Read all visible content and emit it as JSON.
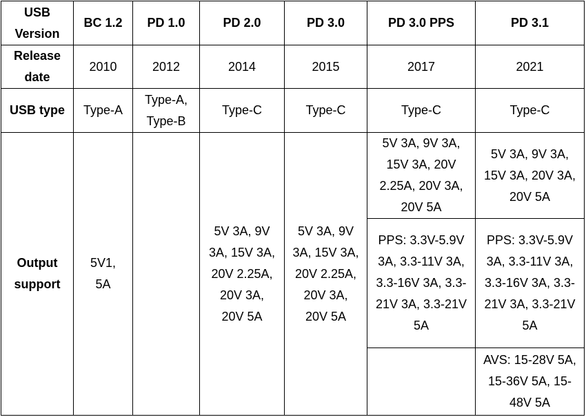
{
  "table": {
    "header": [
      "USB Version",
      "BC 1.2",
      "PD 1.0",
      "PD 2.0",
      "PD 3.0",
      "PD 3.0 PPS",
      "PD 3.1"
    ],
    "rows": [
      [
        "Release date",
        "2010",
        "2012",
        "2014",
        "2015",
        "2017",
        "2021"
      ],
      [
        "USB type",
        "Type-A",
        "Type-A, Type-B",
        "Type-C",
        "Type-C",
        "Type-C",
        "Type-C"
      ]
    ],
    "output": {
      "label": "Output support",
      "bc12": "5V1, 5A",
      "pd20": "5V 3A, 9V 3A, 15V 3A, 20V 2.25A, 20V 3A, 20V 5A",
      "pd30": "5V 3A, 9V 3A, 15V 3A, 20V 2.25A, 20V 3A, 20V 5A",
      "pps": [
        "5V 3A, 9V 3A, 15V 3A, 20V 2.25A, 20V 3A, 20V 5A",
        "PPS: 3.3V-5.9V 3A, 3.3-11V 3A, 3.3-16V 3A, 3.3-21V 3A, 3.3-21V 5A"
      ],
      "pd31": [
        "5V 3A, 9V 3A, 15V 3A, 20V 3A, 20V 5A",
        "PPS: 3.3V-5.9V 3A, 3.3-11V 3A, 3.3-16V 3A, 3.3-21V 3A, 3.3-21V 5A",
        "AVS: 15-28V 5A, 15-36V 5A, 15-48V 5A"
      ]
    }
  }
}
